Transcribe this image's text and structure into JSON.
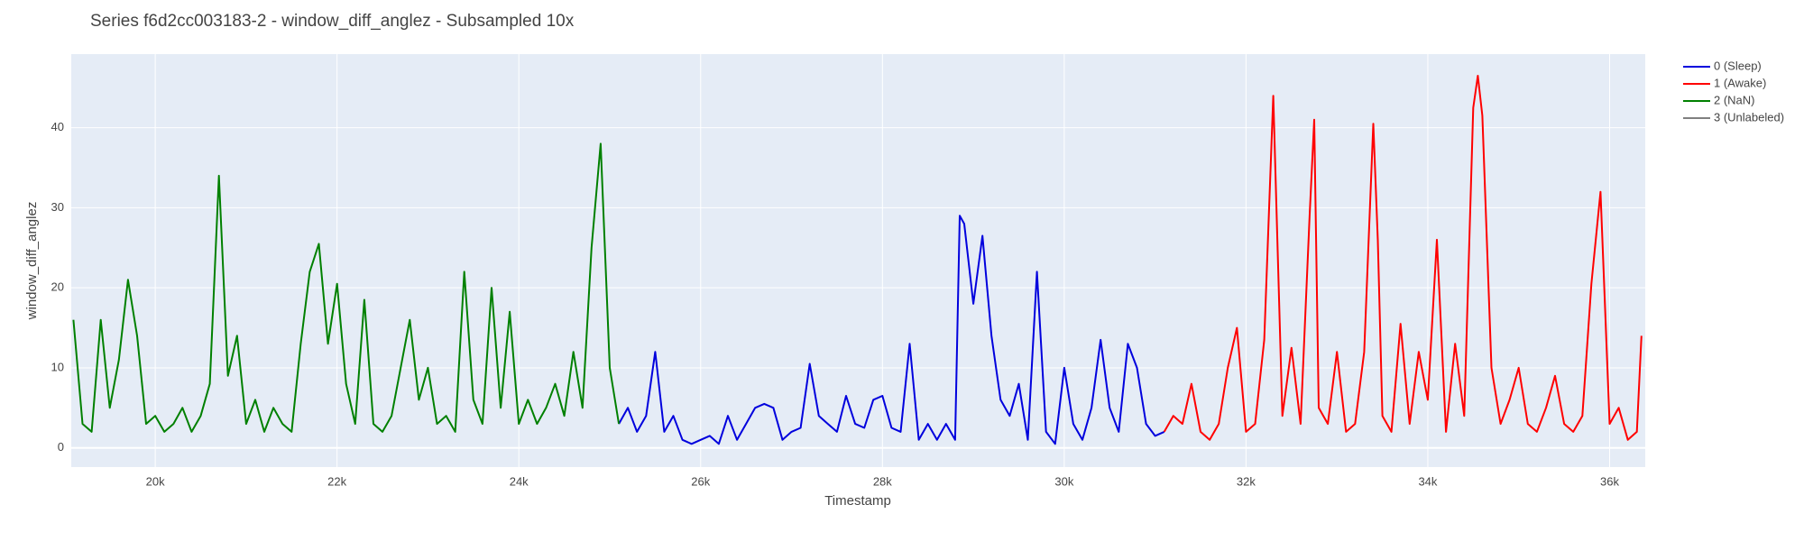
{
  "chart_data": {
    "type": "line",
    "title": "Series f6d2cc003183-2 - window_diff_anglez - Subsampled 10x",
    "x_label": "Timestamp",
    "y_label": "window_diff_anglez",
    "xlim": [
      19076,
      36392
    ],
    "ylim": [
      -2.4,
      49.2
    ],
    "xticks": [
      {
        "value": 20000,
        "label": "20k"
      },
      {
        "value": 22000,
        "label": "22k"
      },
      {
        "value": 24000,
        "label": "24k"
      },
      {
        "value": 26000,
        "label": "26k"
      },
      {
        "value": 28000,
        "label": "28k"
      },
      {
        "value": 30000,
        "label": "30k"
      },
      {
        "value": 32000,
        "label": "32k"
      },
      {
        "value": 34000,
        "label": "34k"
      },
      {
        "value": 36000,
        "label": "36k"
      }
    ],
    "yticks": [
      0,
      10,
      20,
      30,
      40
    ],
    "grid": true,
    "legend": "right",
    "series": [
      {
        "name": "0 (Sleep)",
        "color": "#0000dd",
        "x": [
          25100,
          25200,
          25300,
          25400,
          25500,
          25600,
          25700,
          25800,
          25900,
          26000,
          26100,
          26200,
          26300,
          26400,
          26500,
          26600,
          26700,
          26800,
          26900,
          27000,
          27100,
          27200,
          27300,
          27400,
          27500,
          27600,
          27700,
          27800,
          27900,
          28000,
          28100,
          28200,
          28300,
          28400,
          28500,
          28600,
          28700,
          28800,
          28850,
          28900,
          29000,
          29100,
          29200,
          29300,
          29400,
          29500,
          29600,
          29700,
          29800,
          29900,
          30000,
          30100,
          30200,
          30300,
          30400,
          30500,
          30600,
          30700,
          30800,
          30900,
          31000,
          31100
        ],
        "values": [
          3,
          5,
          2,
          4,
          12,
          2,
          4,
          1,
          0.5,
          1,
          1.5,
          0.5,
          4,
          1,
          3,
          5,
          5.5,
          5,
          1,
          2,
          2.5,
          10.5,
          4,
          3,
          2,
          6.5,
          3,
          2.5,
          6,
          6.5,
          2.5,
          2,
          13,
          1,
          3,
          1,
          3,
          1,
          29,
          28,
          18,
          26.5,
          14,
          6,
          4,
          8,
          1,
          22,
          2,
          0.5,
          10,
          3,
          1,
          5,
          13.5,
          5,
          2,
          13,
          10,
          3,
          1.5,
          2
        ]
      },
      {
        "name": "1 (Awake)",
        "color": "#ff0000",
        "x": [
          31100,
          31200,
          31300,
          31400,
          31500,
          31600,
          31700,
          31800,
          31900,
          32000,
          32100,
          32200,
          32300,
          32400,
          32500,
          32600,
          32700,
          32750,
          32800,
          32900,
          33000,
          33100,
          33200,
          33300,
          33400,
          33450,
          33500,
          33600,
          33700,
          33800,
          33900,
          34000,
          34100,
          34200,
          34300,
          34400,
          34500,
          34550,
          34600,
          34700,
          34800,
          34900,
          35000,
          35100,
          35200,
          35300,
          35400,
          35500,
          35600,
          35700,
          35800,
          35900,
          36000,
          36100,
          36200,
          36300,
          36350
        ],
        "values": [
          2,
          4,
          3,
          8,
          2,
          1,
          3,
          10,
          15,
          2,
          3,
          13.5,
          44,
          4,
          12.5,
          3,
          29,
          41,
          5,
          3,
          12,
          2,
          3,
          12,
          40.5,
          26,
          4,
          2,
          15.5,
          3,
          12,
          6,
          26,
          2,
          13,
          4,
          42.5,
          46.5,
          41.5,
          10,
          3,
          6,
          10,
          3,
          2,
          5,
          9,
          3,
          2,
          4,
          20.5,
          32,
          3,
          5,
          1,
          2,
          14
        ]
      },
      {
        "name": "2 (NaN)",
        "color": "#008000",
        "x": [
          19100,
          19200,
          19300,
          19400,
          19500,
          19600,
          19700,
          19800,
          19900,
          20000,
          20100,
          20200,
          20300,
          20400,
          20500,
          20600,
          20700,
          20800,
          20900,
          21000,
          21100,
          21200,
          21300,
          21400,
          21500,
          21600,
          21700,
          21800,
          21900,
          22000,
          22100,
          22200,
          22300,
          22400,
          22500,
          22600,
          22700,
          22800,
          22900,
          23000,
          23100,
          23200,
          23300,
          23400,
          23500,
          23600,
          23700,
          23800,
          23900,
          24000,
          24100,
          24200,
          24300,
          24400,
          24500,
          24600,
          24700,
          24800,
          24900,
          25000,
          25100
        ],
        "values": [
          16,
          3,
          2,
          16,
          5,
          11,
          21,
          14,
          3,
          4,
          2,
          3,
          5,
          2,
          4,
          8,
          34,
          9,
          14,
          3,
          6,
          2,
          5,
          3,
          2,
          13,
          22,
          25.5,
          13,
          20.5,
          8,
          3,
          18.5,
          3,
          2,
          4,
          10,
          16,
          6,
          10,
          3,
          4,
          2,
          22,
          6,
          3,
          20,
          5,
          17,
          3,
          6,
          3,
          5,
          8,
          4,
          12,
          5,
          25,
          38,
          10,
          3
        ]
      },
      {
        "name": "3 (Unlabeled)",
        "color": "#808080",
        "x": [],
        "values": []
      }
    ]
  }
}
